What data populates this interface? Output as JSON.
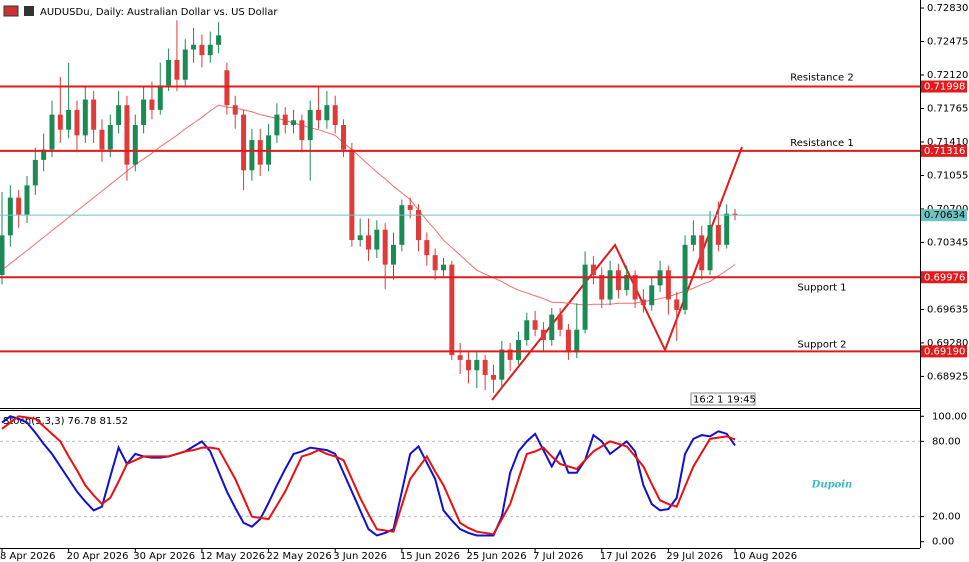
{
  "chart_data": [
    {
      "type": "candlestick",
      "title": "AUDUSDu, Daily: Australian Dollar vs. US Dollar",
      "categories": [
        "8 Apr 2026",
        null,
        null,
        null,
        null,
        null,
        null,
        null,
        "20 Apr 2026",
        null,
        null,
        null,
        null,
        null,
        null,
        null,
        "30 Apr 2026",
        null,
        null,
        null,
        null,
        null,
        null,
        null,
        "12 May 2026",
        null,
        null,
        null,
        null,
        null,
        null,
        null,
        "22 May 2026",
        null,
        null,
        null,
        null,
        null,
        null,
        null,
        "3 Jun 2026",
        null,
        null,
        null,
        null,
        null,
        null,
        null,
        "15 Jun 2026",
        null,
        null,
        null,
        null,
        null,
        null,
        null,
        "25 Jun 2026",
        null,
        null,
        null,
        null,
        null,
        null,
        null,
        "7 Jul 2026",
        null,
        null,
        null,
        null,
        null,
        null,
        null,
        "17 Jul 2026",
        null,
        null,
        null,
        null,
        null,
        null,
        null,
        "29 Jul 2026",
        null,
        null,
        null,
        null,
        null,
        null,
        null,
        "10 Aug 2026"
      ],
      "open": [
        0.7,
        0.7042,
        0.7082,
        0.7064,
        0.7095,
        0.7122,
        0.7133,
        0.717,
        0.7154,
        0.7175,
        0.7148,
        0.7186,
        0.7154,
        0.7133,
        0.7159,
        0.718,
        0.7117,
        0.7159,
        0.7186,
        0.7175,
        0.7201,
        0.7228,
        0.7207,
        0.7239,
        0.7244,
        0.7233,
        0.7244,
        0.7217,
        0.718,
        0.717,
        0.7111,
        0.7143,
        0.7117,
        0.7148,
        0.717,
        0.7159,
        0.7164,
        0.7143,
        0.7175,
        0.7164,
        0.718,
        0.7159,
        0.7133,
        0.7037,
        0.7042,
        0.7027,
        0.7048,
        0.7011,
        0.7032,
        0.7074,
        0.7069,
        0.7037,
        0.7021,
        0.7005,
        0.7011,
        0.6915,
        0.691,
        0.6899,
        0.691,
        0.6894,
        0.6889,
        0.6921,
        0.691,
        0.6931,
        0.6952,
        0.6942,
        0.6931,
        0.6958,
        0.6942,
        0.6918,
        0.6942,
        0.7011,
        0.7,
        0.6974,
        0.7005,
        0.6984,
        0.7,
        0.6974,
        0.6968,
        0.6989,
        0.7005,
        0.6974,
        0.6963,
        0.7032,
        0.7042,
        0.7005,
        0.7053,
        0.7032,
        0.7065
      ],
      "high": [
        0.7088,
        0.7095,
        0.709,
        0.7105,
        0.7135,
        0.715,
        0.7185,
        0.721,
        0.7225,
        0.7185,
        0.72,
        0.7195,
        0.7165,
        0.717,
        0.7195,
        0.719,
        0.717,
        0.72,
        0.7205,
        0.7225,
        0.724,
        0.727,
        0.725,
        0.7262,
        0.7255,
        0.7258,
        0.7268,
        0.7225,
        0.719,
        0.7175,
        0.7155,
        0.7155,
        0.716,
        0.7182,
        0.7178,
        0.7175,
        0.717,
        0.7185,
        0.72,
        0.7195,
        0.719,
        0.7165,
        0.714,
        0.706,
        0.706,
        0.7058,
        0.7055,
        0.7045,
        0.708,
        0.7082,
        0.7075,
        0.7045,
        0.7028,
        0.7018,
        0.7015,
        0.6928,
        0.692,
        0.6918,
        0.6915,
        0.6905,
        0.693,
        0.6928,
        0.694,
        0.696,
        0.6962,
        0.695,
        0.6965,
        0.6965,
        0.6948,
        0.697,
        0.7025,
        0.702,
        0.7008,
        0.7015,
        0.7012,
        0.701,
        0.7005,
        0.6985,
        0.6998,
        0.7015,
        0.701,
        0.6982,
        0.7042,
        0.7058,
        0.7052,
        0.7068,
        0.7078,
        0.7075,
        0.707
      ],
      "low": [
        0.699,
        0.703,
        0.705,
        0.7055,
        0.7085,
        0.711,
        0.7125,
        0.714,
        0.7145,
        0.713,
        0.714,
        0.714,
        0.712,
        0.7125,
        0.715,
        0.71,
        0.711,
        0.715,
        0.7165,
        0.717,
        0.7195,
        0.7195,
        0.72,
        0.7225,
        0.722,
        0.7225,
        0.7235,
        0.717,
        0.7155,
        0.709,
        0.71,
        0.7105,
        0.711,
        0.714,
        0.715,
        0.715,
        0.713,
        0.71,
        0.7155,
        0.7155,
        0.715,
        0.7125,
        0.703,
        0.703,
        0.7015,
        0.7018,
        0.6985,
        0.6995,
        0.7025,
        0.706,
        0.7025,
        0.701,
        0.6995,
        0.6998,
        0.691,
        0.6895,
        0.6885,
        0.688,
        0.6878,
        0.6875,
        0.688,
        0.6898,
        0.6905,
        0.6925,
        0.6935,
        0.692,
        0.6925,
        0.6935,
        0.691,
        0.6912,
        0.6938,
        0.699,
        0.6965,
        0.6968,
        0.6975,
        0.6978,
        0.6965,
        0.696,
        0.6962,
        0.6982,
        0.6958,
        0.693,
        0.6958,
        0.7025,
        0.6995,
        0.7,
        0.7025,
        0.7028,
        0.7058
      ],
      "close": [
        0.7042,
        0.7082,
        0.7064,
        0.7095,
        0.7122,
        0.7133,
        0.717,
        0.7154,
        0.7175,
        0.7148,
        0.7186,
        0.7154,
        0.7133,
        0.7159,
        0.718,
        0.7117,
        0.7159,
        0.7186,
        0.7175,
        0.7201,
        0.7228,
        0.7207,
        0.7239,
        0.7244,
        0.7233,
        0.7244,
        0.7254,
        0.718,
        0.717,
        0.7111,
        0.7143,
        0.7117,
        0.7148,
        0.717,
        0.7159,
        0.7164,
        0.7143,
        0.7175,
        0.7164,
        0.718,
        0.7159,
        0.7133,
        0.7037,
        0.7042,
        0.7027,
        0.7048,
        0.7011,
        0.7032,
        0.7074,
        0.7069,
        0.7037,
        0.7021,
        0.7005,
        0.7011,
        0.6915,
        0.691,
        0.6899,
        0.691,
        0.6894,
        0.6889,
        0.6921,
        0.691,
        0.6931,
        0.6952,
        0.6942,
        0.6931,
        0.6958,
        0.6942,
        0.6918,
        0.6942,
        0.7011,
        0.7,
        0.6974,
        0.7005,
        0.6984,
        0.7,
        0.6974,
        0.6968,
        0.6989,
        0.7005,
        0.6974,
        0.6963,
        0.7032,
        0.7042,
        0.7005,
        0.7053,
        0.7032,
        0.7065,
        0.70634
      ],
      "up_color": "#1b8a55",
      "down_color": "#e03a3a",
      "moving_average": {
        "color": "#f07070",
        "values": [
          0.7005,
          0.7012,
          0.7019,
          0.7026,
          0.7033,
          0.704,
          0.7047,
          0.7054,
          0.7061,
          0.7068,
          0.7075,
          0.7082,
          0.7089,
          0.7096,
          0.7103,
          0.711,
          0.7117,
          0.7123,
          0.7129,
          0.7136,
          0.7142,
          0.7148,
          0.7155,
          0.7161,
          0.7167,
          0.7174,
          0.718,
          0.7178,
          0.7177,
          0.7175,
          0.7173,
          0.717,
          0.7168,
          0.7166,
          0.7164,
          0.7161,
          0.7159,
          0.7156,
          0.7154,
          0.7151,
          0.7148,
          0.714,
          0.7133,
          0.7125,
          0.7117,
          0.7109,
          0.7102,
          0.7094,
          0.7087,
          0.708,
          0.7069,
          0.7058,
          0.7048,
          0.7037,
          0.7029,
          0.7021,
          0.7013,
          0.7005,
          0.7001,
          0.6997,
          0.6993,
          0.6988,
          0.6984,
          0.6981,
          0.6978,
          0.6975,
          0.6971,
          0.6971,
          0.697,
          0.6969,
          0.6968,
          0.6969,
          0.6969,
          0.6969,
          0.697,
          0.697,
          0.697,
          0.6972,
          0.6973,
          0.6975,
          0.6977,
          0.698,
          0.6983,
          0.6986,
          0.699,
          0.6993,
          0.6999,
          0.7005,
          0.7011
        ]
      },
      "ylim": [
        0.6859,
        0.72915
      ],
      "yticks": [
        {
          "value": 0.7283,
          "label": "0.72830"
        },
        {
          "value": 0.72475,
          "label": "0.72475"
        },
        {
          "value": 0.7212,
          "label": "0.72120"
        },
        {
          "value": 0.71765,
          "label": "0.71765"
        },
        {
          "value": 0.7141,
          "label": "0.71410"
        },
        {
          "value": 0.71055,
          "label": "0.71055"
        },
        {
          "value": 0.707,
          "label": "0.70700"
        },
        {
          "value": 0.70345,
          "label": "0.70345"
        },
        {
          "value": 0.69635,
          "label": "0.69635"
        },
        {
          "value": 0.6928,
          "label": "0.69280"
        },
        {
          "value": 0.68925,
          "label": "0.68925"
        }
      ],
      "levels": [
        {
          "name": "Resistance 2",
          "value": 0.71998,
          "color": "#e31a1c"
        },
        {
          "name": "Resistance 1",
          "value": 0.71316,
          "color": "#e31a1c"
        },
        {
          "name": "Support 1",
          "value": 0.69976,
          "color": "#e31a1c"
        },
        {
          "name": "Support 2",
          "value": 0.6919,
          "value_label": "0.69190",
          "color": "#e31a1c"
        }
      ],
      "bid": {
        "value": 0.70634,
        "color": "#6cc3c3"
      }
    },
    {
      "type": "line",
      "title": "Stoch(5,3,3)",
      "series": [
        {
          "color": "#1010d0",
          "values": [
            95,
            100,
            98,
            95,
            87,
            78,
            70,
            60,
            50,
            40,
            32,
            25,
            28,
            52,
            75,
            62,
            70,
            68,
            67,
            67,
            68,
            70,
            72,
            76,
            80,
            72,
            56,
            40,
            27,
            15,
            12,
            18,
            31,
            45,
            58,
            70,
            72,
            75,
            74,
            73,
            70,
            55,
            40,
            25,
            10,
            5,
            7,
            10,
            40,
            70,
            76,
            63,
            50,
            25,
            17,
            10,
            7,
            5,
            5,
            5,
            20,
            55,
            72,
            80,
            86,
            73,
            60,
            72,
            55,
            55,
            65,
            85,
            80,
            70,
            75,
            80,
            72,
            45,
            30,
            25,
            26,
            35,
            70,
            82,
            85,
            84,
            88,
            86,
            76.78
          ]
        },
        {
          "color": "#e81010",
          "values": [
            90,
            95,
            100,
            99,
            98,
            92,
            86,
            80,
            68,
            57,
            45,
            37,
            30,
            35,
            48,
            62,
            65,
            68,
            68,
            68,
            68,
            70,
            72,
            73,
            75,
            75,
            74,
            62,
            50,
            35,
            20,
            19,
            18,
            29,
            40,
            54,
            68,
            70,
            73,
            70,
            68,
            65,
            50,
            35,
            22,
            10,
            9,
            8,
            29,
            50,
            59,
            68,
            56,
            45,
            30,
            15,
            11,
            8,
            7,
            6,
            18,
            30,
            50,
            70,
            72,
            75,
            68,
            62,
            60,
            58,
            65,
            72,
            76,
            80,
            78,
            76,
            68,
            60,
            46,
            33,
            30,
            28,
            44,
            60,
            71,
            82,
            83,
            84,
            81.52
          ]
        }
      ],
      "ylim": [
        -5,
        105
      ],
      "yticks": [
        {
          "value": 100,
          "label": "100.00"
        },
        {
          "value": 80,
          "label": "80.00"
        },
        {
          "value": 20,
          "label": "20.00"
        },
        {
          "value": 0,
          "label": "0.00"
        }
      ],
      "levels": [
        80,
        20
      ]
    }
  ],
  "watermark": "Dupoin",
  "countdown": [
    "16:",
    "2",
    "1",
    "19:45"
  ]
}
